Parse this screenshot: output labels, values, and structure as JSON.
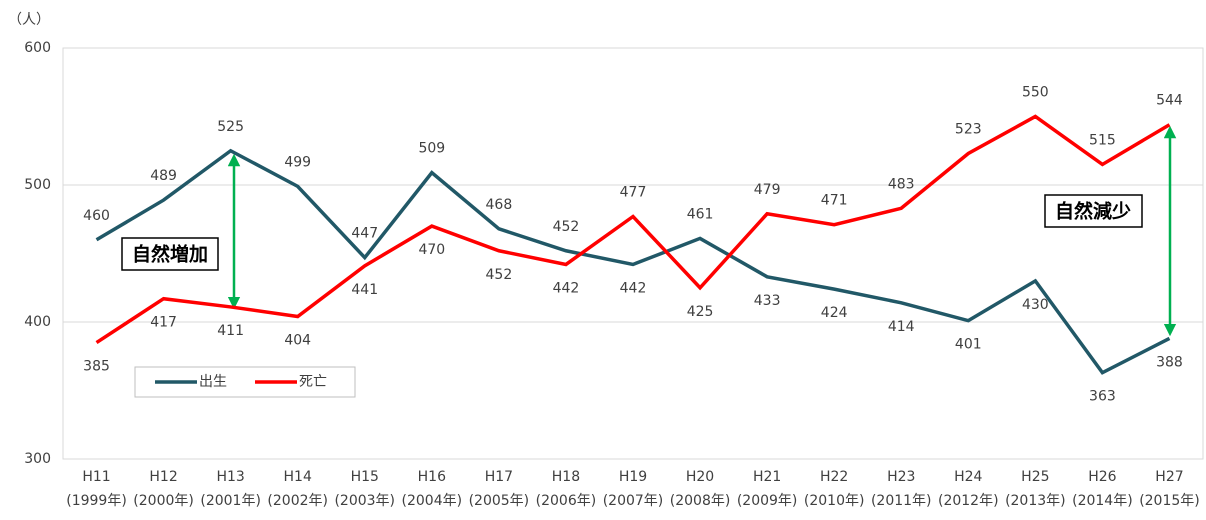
{
  "chart_data": {
    "type": "line",
    "y_unit": "（人）",
    "categories": [
      [
        "H11",
        "(1999年)"
      ],
      [
        "H12",
        "(2000年)"
      ],
      [
        "H13",
        "(2001年)"
      ],
      [
        "H14",
        "(2002年)"
      ],
      [
        "H15",
        "(2003年)"
      ],
      [
        "H16",
        "(2004年)"
      ],
      [
        "H17",
        "(2005年)"
      ],
      [
        "H18",
        "(2006年)"
      ],
      [
        "H19",
        "(2007年)"
      ],
      [
        "H20",
        "(2008年)"
      ],
      [
        "H21",
        "(2009年)"
      ],
      [
        "H22",
        "(2010年)"
      ],
      [
        "H23",
        "(2011年)"
      ],
      [
        "H24",
        "(2012年)"
      ],
      [
        "H25",
        "(2013年)"
      ],
      [
        "H26",
        "(2014年)"
      ],
      [
        "H27",
        "(2015年)"
      ]
    ],
    "series": [
      {
        "name": "出生",
        "color": "#215867",
        "values": [
          460,
          489,
          525,
          499,
          447,
          509,
          468,
          452,
          442,
          461,
          433,
          424,
          414,
          401,
          430,
          363,
          388
        ]
      },
      {
        "name": "死亡",
        "color": "#ff0000",
        "values": [
          385,
          417,
          411,
          404,
          441,
          470,
          452,
          442,
          477,
          425,
          479,
          471,
          483,
          523,
          550,
          515,
          544
        ]
      }
    ],
    "ylim": [
      300,
      600
    ],
    "yticks": [
      300,
      400,
      500,
      600
    ],
    "grid": true,
    "annotations": [
      "自然増加",
      "自然減少"
    ]
  }
}
